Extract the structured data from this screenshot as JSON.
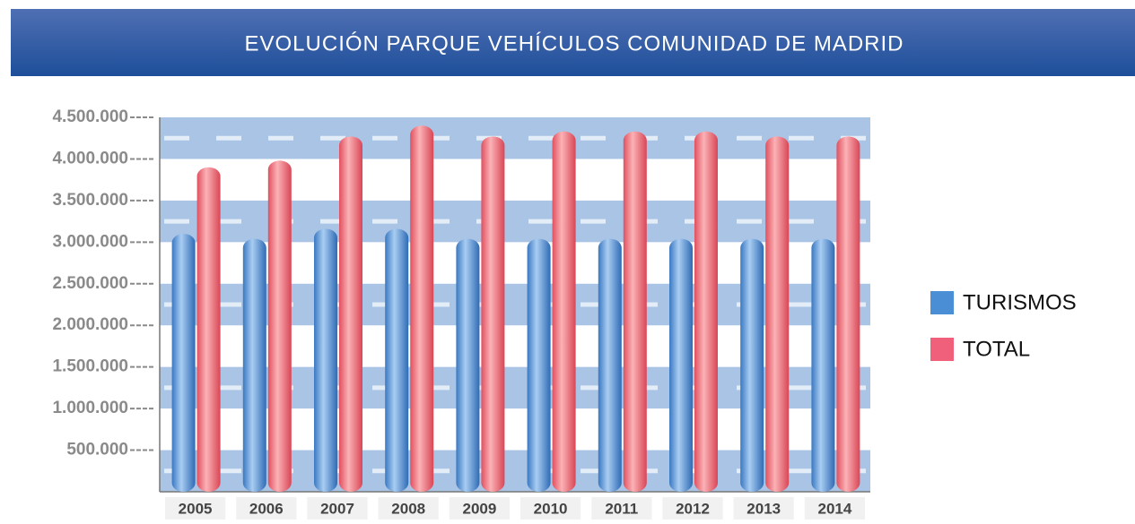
{
  "chart_data": {
    "type": "bar",
    "title": "EVOLUCIÓN PARQUE VEHÍCULOS COMUNIDAD DE MADRID",
    "categories": [
      "2005",
      "2006",
      "2007",
      "2008",
      "2009",
      "2010",
      "2011",
      "2012",
      "2013",
      "2014"
    ],
    "series": [
      {
        "name": "TURISMOS",
        "color": "#4a8fd6",
        "values": [
          3100000,
          3040000,
          3160000,
          3160000,
          3040000,
          3040000,
          3040000,
          3040000,
          3040000,
          3040000
        ]
      },
      {
        "name": "TOTAL",
        "color": "#f0607a",
        "values": [
          3900000,
          3980000,
          4270000,
          4400000,
          4270000,
          4330000,
          4330000,
          4330000,
          4270000,
          4270000
        ]
      }
    ],
    "ylim": [
      0,
      4500000
    ],
    "yticks": [
      {
        "value": 500000,
        "label": "500.000"
      },
      {
        "value": 1000000,
        "label": "1.000.000"
      },
      {
        "value": 1500000,
        "label": "1.500.000"
      },
      {
        "value": 2000000,
        "label": "2.000.000"
      },
      {
        "value": 2500000,
        "label": "2.500.000"
      },
      {
        "value": 3000000,
        "label": "3.000.000"
      },
      {
        "value": 3500000,
        "label": "3.500.000"
      },
      {
        "value": 4000000,
        "label": "4.000.000"
      },
      {
        "value": 4500000,
        "label": "4.500.000"
      }
    ],
    "legend": "right"
  }
}
